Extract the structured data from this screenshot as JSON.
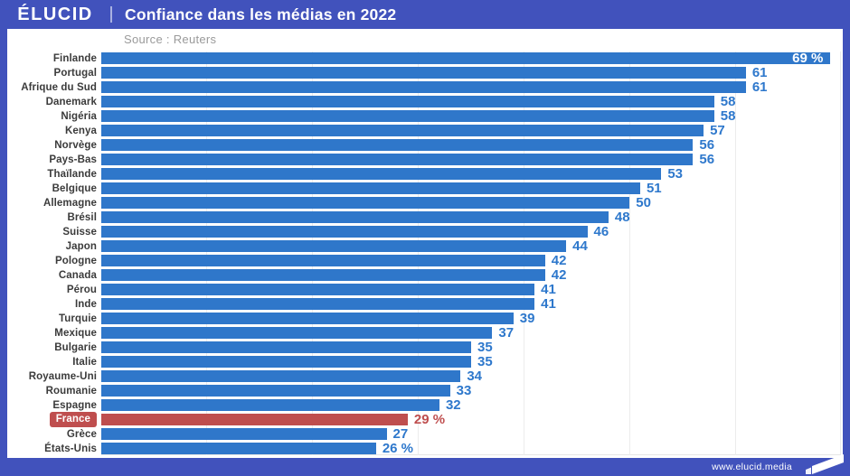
{
  "header": {
    "logo": "ÉLUCID",
    "title": "Confiance dans les médias en 2022"
  },
  "source": "Source : Reuters",
  "footer": {
    "url": "www.elucid.media"
  },
  "colors": {
    "frame_blue": "#4152BC",
    "bar_blue": "#2F77CA",
    "value_blue": "#2E78CC",
    "highlight_red": "#BF4E4E",
    "label_dark": "#3b3b3b",
    "gridline": "#ececec"
  },
  "chart_data": {
    "type": "bar",
    "orientation": "horizontal",
    "title": "Confiance dans les médias en 2022",
    "source": "Source : Reuters",
    "unit": "%",
    "xlim": [
      0,
      70
    ],
    "gridlines_every": 10,
    "grid": true,
    "legend": false,
    "categories": [
      "Finlande",
      "Portugal",
      "Afrique du Sud",
      "Danemark",
      "Nigéria",
      "Kenya",
      "Norvège",
      "Pays-Bas",
      "Thaïlande",
      "Belgique",
      "Allemagne",
      "Brésil",
      "Suisse",
      "Japon",
      "Pologne",
      "Canada",
      "Pérou",
      "Inde",
      "Turquie",
      "Mexique",
      "Bulgarie",
      "Italie",
      "Royaume-Uni",
      "Roumanie",
      "Espagne",
      "France",
      "Grèce",
      "États-Unis"
    ],
    "values": [
      69,
      61,
      61,
      58,
      58,
      57,
      56,
      56,
      53,
      51,
      50,
      48,
      46,
      44,
      42,
      42,
      41,
      41,
      39,
      37,
      35,
      35,
      34,
      33,
      32,
      29,
      27,
      26
    ],
    "value_labels": [
      "69 %",
      "61",
      "61",
      "58",
      "58",
      "57",
      "56",
      "56",
      "53",
      "51",
      "50",
      "48",
      "46",
      "44",
      "42",
      "42",
      "41",
      "41",
      "39",
      "37",
      "35",
      "35",
      "34",
      "33",
      "32",
      "29 %",
      "27",
      "26 %"
    ],
    "highlight_index": 25,
    "first_value_inside_bar": true
  }
}
